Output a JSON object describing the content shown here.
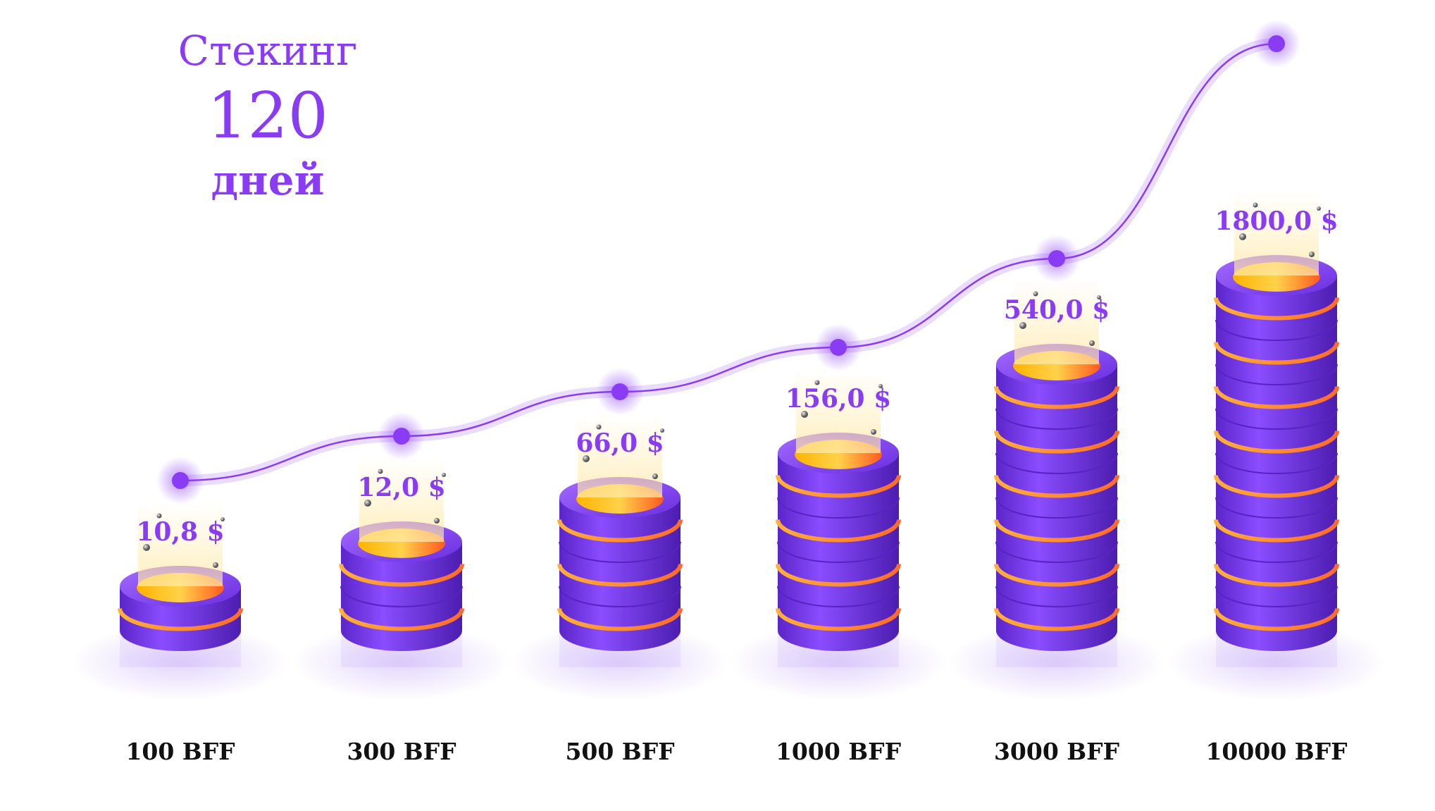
{
  "header": {
    "line1": "Стекинг",
    "line2": "120",
    "line3": "дней"
  },
  "colors": {
    "accent": "#8a3cf5",
    "coin": "#7b3ff0",
    "stripe": "#ff8a3c",
    "label": "#111111"
  },
  "chart_data": {
    "type": "bar",
    "title": "Стекинг 120 дней",
    "categories": [
      "100 BFF",
      "300 BFF",
      "500 BFF",
      "1000 BFF",
      "3000 BFF",
      "10000 BFF"
    ],
    "values": [
      10.8,
      12.0,
      66.0,
      156.0,
      540.0,
      1800.0
    ],
    "data_labels": [
      "10,8 $",
      "12,0 $",
      "66,0 $",
      "156,0 $",
      "540,0 $",
      "1800,0 $"
    ],
    "coin_counts": [
      2,
      4,
      6,
      8,
      12,
      16
    ],
    "trend_line": true,
    "xlabel": "",
    "ylabel": "",
    "grid": false,
    "legend": "none"
  }
}
